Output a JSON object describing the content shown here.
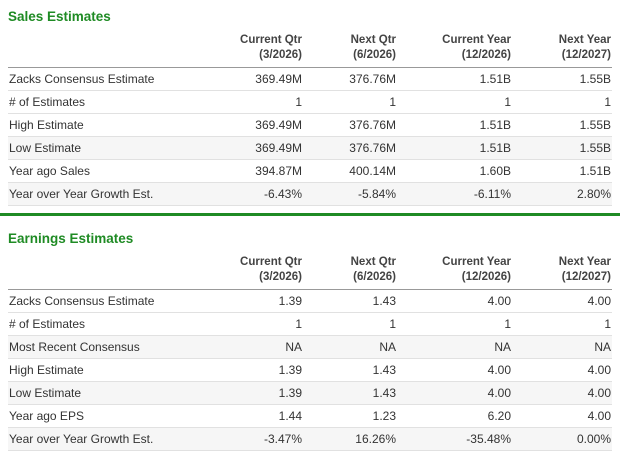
{
  "colors": {
    "accent_green": "#1f8b24",
    "header_text": "#444444",
    "body_text": "#333333",
    "row_shade": "#f6f6f6",
    "row_border": "#e1e1e1",
    "header_border": "#999999"
  },
  "sales": {
    "title": "Sales Estimates",
    "columns": [
      {
        "label": "Current Qtr",
        "sub": "(3/2026)"
      },
      {
        "label": "Next Qtr",
        "sub": "(6/2026)"
      },
      {
        "label": "Current Year",
        "sub": "(12/2026)"
      },
      {
        "label": "Next Year",
        "sub": "(12/2027)"
      }
    ],
    "rows": [
      {
        "label": "Zacks Consensus Estimate",
        "values": [
          "369.49M",
          "376.76M",
          "1.51B",
          "1.55B"
        ]
      },
      {
        "label": "# of Estimates",
        "values": [
          "1",
          "1",
          "1",
          "1"
        ]
      },
      {
        "label": "High Estimate",
        "values": [
          "369.49M",
          "376.76M",
          "1.51B",
          "1.55B"
        ]
      },
      {
        "label": "Low Estimate",
        "values": [
          "369.49M",
          "376.76M",
          "1.51B",
          "1.55B"
        ]
      },
      {
        "label": "Year ago Sales",
        "values": [
          "394.87M",
          "400.14M",
          "1.60B",
          "1.51B"
        ]
      },
      {
        "label": "Year over Year Growth Est.",
        "values": [
          "-6.43%",
          "-5.84%",
          "-6.11%",
          "2.80%"
        ]
      }
    ]
  },
  "earnings": {
    "title": "Earnings Estimates",
    "columns": [
      {
        "label": "Current Qtr",
        "sub": "(3/2026)"
      },
      {
        "label": "Next Qtr",
        "sub": "(6/2026)"
      },
      {
        "label": "Current Year",
        "sub": "(12/2026)"
      },
      {
        "label": "Next Year",
        "sub": "(12/2027)"
      }
    ],
    "rows": [
      {
        "label": "Zacks Consensus Estimate",
        "values": [
          "1.39",
          "1.43",
          "4.00",
          "4.00"
        ]
      },
      {
        "label": "# of Estimates",
        "values": [
          "1",
          "1",
          "1",
          "1"
        ]
      },
      {
        "label": "Most Recent Consensus",
        "values": [
          "NA",
          "NA",
          "NA",
          "NA"
        ]
      },
      {
        "label": "High Estimate",
        "values": [
          "1.39",
          "1.43",
          "4.00",
          "4.00"
        ]
      },
      {
        "label": "Low Estimate",
        "values": [
          "1.39",
          "1.43",
          "4.00",
          "4.00"
        ]
      },
      {
        "label": "Year ago EPS",
        "values": [
          "1.44",
          "1.23",
          "6.20",
          "4.00"
        ]
      },
      {
        "label": "Year over Year Growth Est.",
        "values": [
          "-3.47%",
          "16.26%",
          "-35.48%",
          "0.00%"
        ]
      }
    ]
  }
}
